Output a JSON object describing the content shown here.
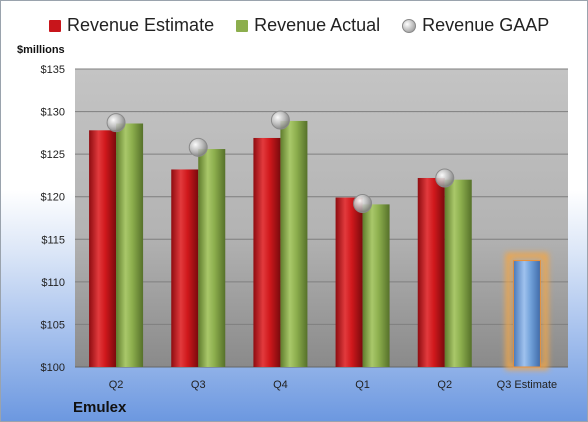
{
  "legend": {
    "estimate": "Revenue Estimate",
    "actual": "Revenue Actual",
    "gaap": "Revenue GAAP"
  },
  "units_label": "$millions",
  "company": "Emulex",
  "colors": {
    "estimate": "#c8151b",
    "actual": "#8cae4d",
    "gaap": "#b5b5b5",
    "projection": "#6f9fd8",
    "projection_glow": "#f0a64a",
    "plot_bg": "#bfbfbf"
  },
  "chart_data": {
    "type": "bar",
    "title": "",
    "xlabel": "",
    "ylabel": "$millions",
    "ylim": [
      100,
      135
    ],
    "yticks": [
      100,
      105,
      110,
      115,
      120,
      125,
      130,
      135
    ],
    "ytick_labels": [
      "$100",
      "$105",
      "$110",
      "$115",
      "$120",
      "$125",
      "$130",
      "$135"
    ],
    "grid": true,
    "legend_position": "top",
    "categories": [
      "Q2",
      "Q3",
      "Q4",
      "Q1",
      "Q2",
      "Q3 Estimate"
    ],
    "series": [
      {
        "name": "Revenue Estimate",
        "values": [
          127.8,
          123.2,
          126.9,
          119.9,
          122.2,
          null
        ]
      },
      {
        "name": "Revenue Actual",
        "values": [
          128.6,
          125.6,
          128.9,
          119.1,
          122.0,
          null
        ]
      },
      {
        "name": "Revenue GAAP",
        "values": [
          128.7,
          125.8,
          129.0,
          119.2,
          122.2,
          null
        ]
      },
      {
        "name": "Q3 Estimate",
        "values": [
          null,
          null,
          null,
          null,
          null,
          112.5
        ]
      }
    ]
  }
}
